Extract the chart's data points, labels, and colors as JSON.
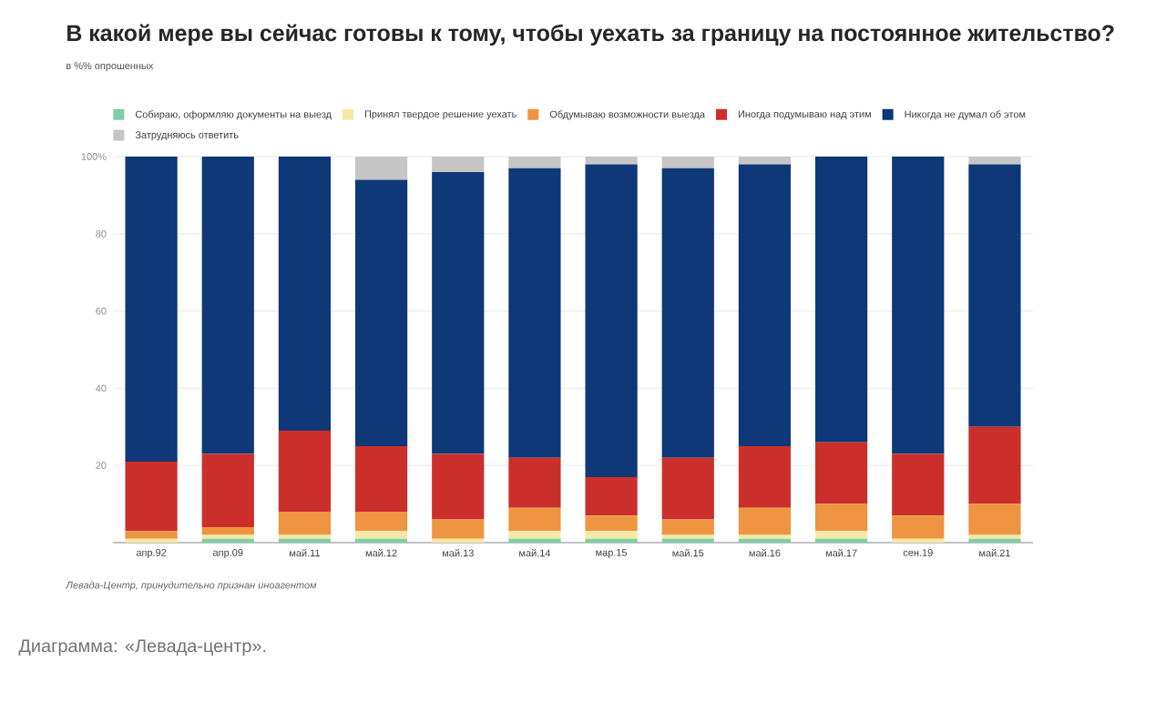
{
  "chart_data": {
    "type": "bar",
    "stacked": true,
    "title": "В какой мере вы сейчас готовы к тому, чтобы уехать за границу на постоянное жительство?",
    "subtitle": "в %% опрошенных",
    "categories": [
      "апр.92",
      "апр.09",
      "май.11",
      "май.12",
      "май.13",
      "май.14",
      "мар.15",
      "май.15",
      "май.16",
      "май.17",
      "сен.19",
      "май.21"
    ],
    "series": [
      {
        "name": "Собираю, оформляю документы на выезд",
        "color": "#7fcfa6",
        "values": [
          0,
          1,
          1,
          1,
          0,
          1,
          1,
          1,
          1,
          1,
          0,
          1
        ]
      },
      {
        "name": "Принял твердое решение уехать",
        "color": "#f8e8a6",
        "values": [
          1,
          1,
          1,
          2,
          1,
          2,
          2,
          1,
          1,
          2,
          1,
          1
        ]
      },
      {
        "name": "Обдумываю возможности выезда",
        "color": "#ef9440",
        "values": [
          2,
          2,
          6,
          5,
          5,
          6,
          4,
          4,
          7,
          7,
          6,
          8
        ]
      },
      {
        "name": "Иногда подумываю над этим",
        "color": "#cb2f2b",
        "values": [
          18,
          19,
          21,
          17,
          17,
          13,
          10,
          16,
          16,
          16,
          16,
          20
        ]
      },
      {
        "name": "Никогда не думал об этом",
        "color": "#0e3877",
        "values": [
          79,
          77,
          71,
          69,
          73,
          75,
          81,
          75,
          73,
          74,
          77,
          68
        ]
      },
      {
        "name": "Затрудняюсь ответить",
        "color": "#c6c6c6",
        "values": [
          0,
          0,
          0,
          6,
          4,
          3,
          2,
          3,
          2,
          0,
          0,
          2
        ]
      }
    ],
    "ylim": [
      0,
      100
    ],
    "yticks": [
      20,
      40,
      60,
      80,
      {
        "value": 100,
        "label": "100%"
      }
    ],
    "grid": "y",
    "legend": "top",
    "annotations": [
      "Левада-Центр, принудительно признан иноагентом",
      "Диаграмма: «Левада-центр»."
    ]
  }
}
